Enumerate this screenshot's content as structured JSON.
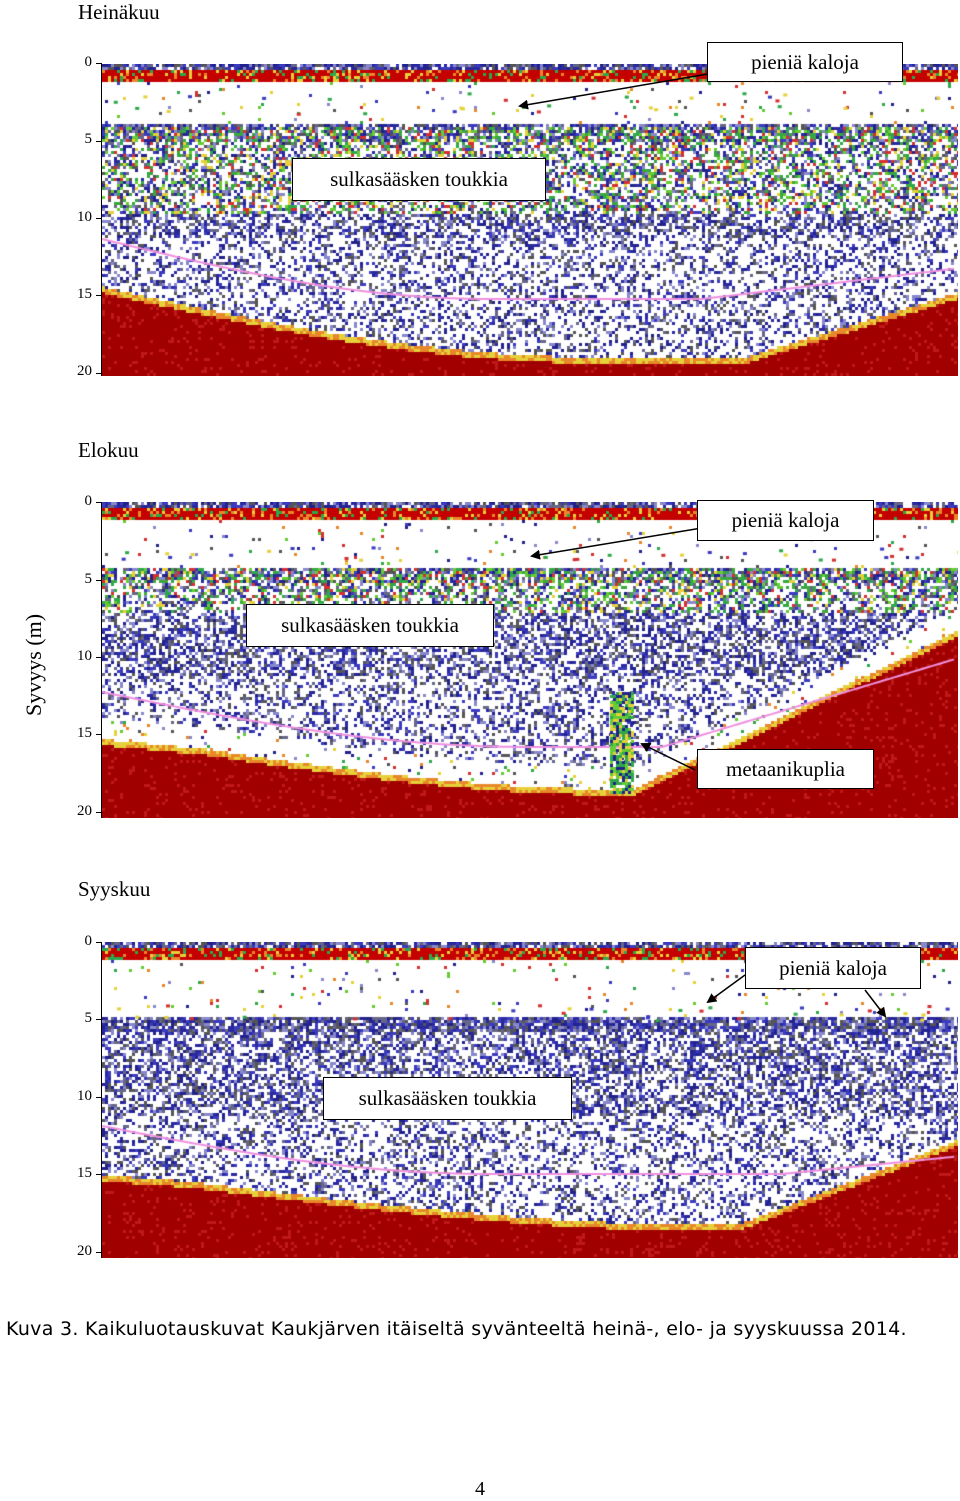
{
  "y_axis_label": "Syvyys (m)",
  "depth_ticks": [
    "0",
    "5",
    "10",
    "15",
    "20"
  ],
  "panels": [
    {
      "title": "Heinäkuu",
      "annotations": [
        "pieniä kaloja",
        "sulkasääsken toukkia"
      ]
    },
    {
      "title": "Elokuu",
      "annotations": [
        "pieniä kaloja",
        "sulkasääsken toukkia",
        "metaanikuplia"
      ]
    },
    {
      "title": "Syyskuu",
      "annotations": [
        "pieniä kaloja",
        "sulkasääsken toukkia"
      ]
    }
  ],
  "colors": {
    "bottom": "#a00000",
    "surface": "#c40000",
    "pink_line": "#f090e0",
    "noise": [
      "#22228c",
      "#3b3bc0",
      "#555555",
      "#8888cc",
      "#2ea84a",
      "#66cc33",
      "#e6d13a",
      "#e8882a",
      "#d43030"
    ]
  },
  "caption": "Kuva 3. Kaikuluotauskuvat Kaukjärven itäiseltä syvänteeltä heinä-, elo- ja syyskuussa 2014.",
  "page_number": "4"
}
